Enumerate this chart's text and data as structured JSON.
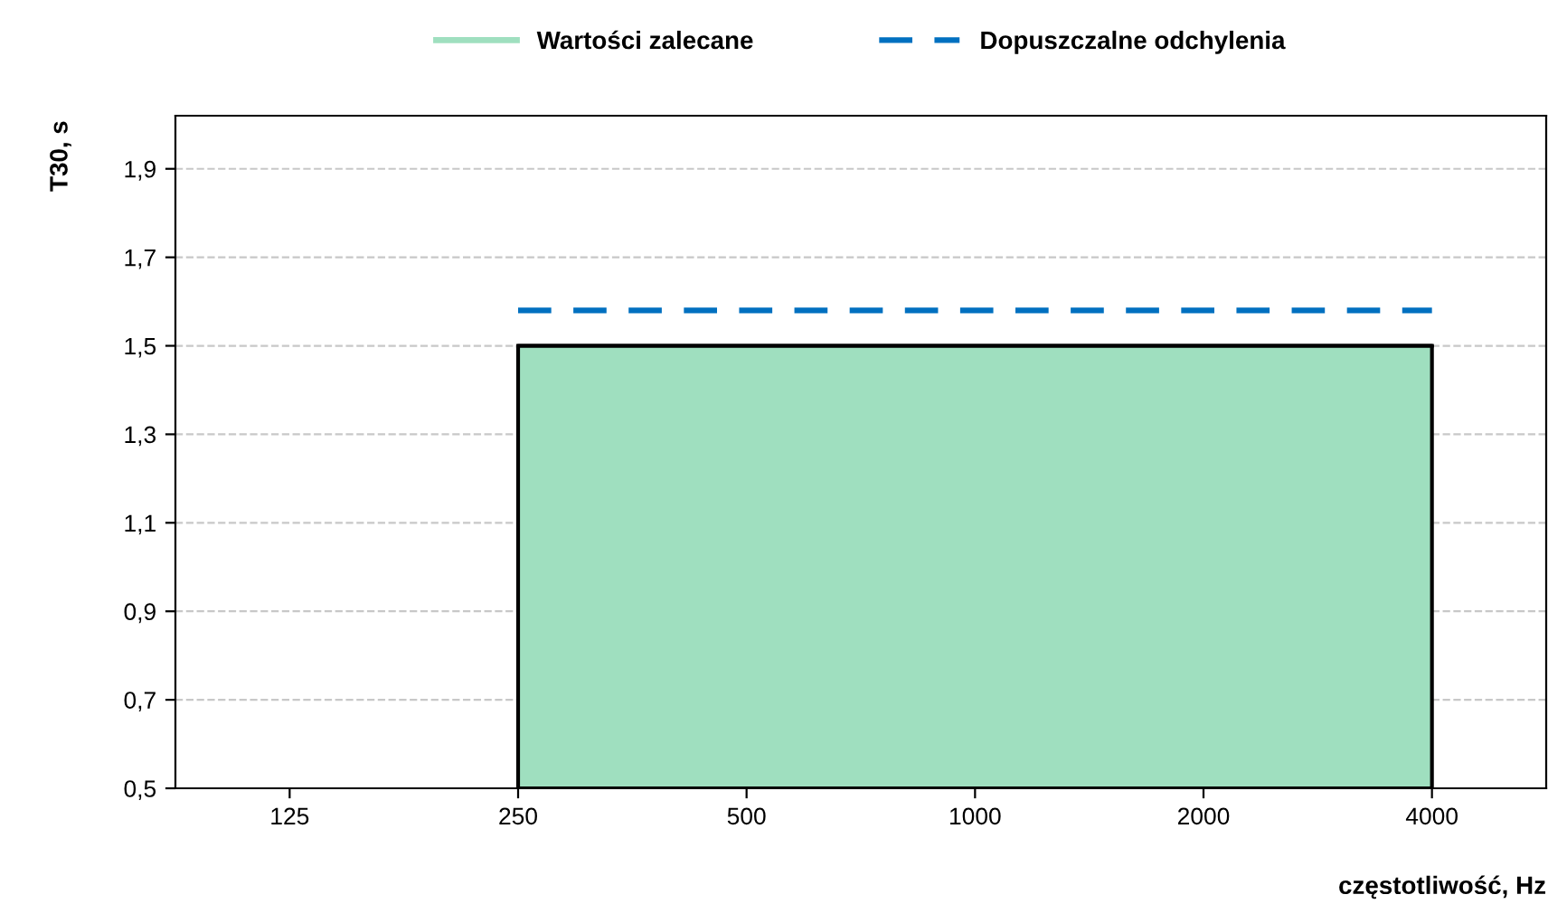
{
  "chart_data": {
    "type": "area",
    "xlabel": "częstotliwość, Hz",
    "ylabel": "T30, s",
    "categories": [
      "125",
      "250",
      "500",
      "1000",
      "2000",
      "4000"
    ],
    "series": [
      {
        "name": "Wartości zalecane",
        "color": "#9fdfbf",
        "values": [
          null,
          1.5,
          1.5,
          1.5,
          1.5,
          1.5
        ]
      },
      {
        "name": "Dopuszczalne odchylenia",
        "type": "line",
        "line_style": "dashed",
        "color": "#0070c0",
        "values": [
          null,
          1.58,
          1.58,
          1.58,
          1.58,
          1.58
        ]
      }
    ],
    "ylim": [
      0.5,
      2.02
    ],
    "yticks": [
      {
        "value": 0.5,
        "label": "0,5"
      },
      {
        "value": 0.7,
        "label": "0,7"
      },
      {
        "value": 0.9,
        "label": "0,9"
      },
      {
        "value": 1.1,
        "label": "1,1"
      },
      {
        "value": 1.3,
        "label": "1,3"
      },
      {
        "value": 1.5,
        "label": "1,5"
      },
      {
        "value": 1.7,
        "label": "1,7"
      },
      {
        "value": 1.9,
        "label": "1,9"
      }
    ],
    "grid": "y",
    "legend": "top"
  }
}
